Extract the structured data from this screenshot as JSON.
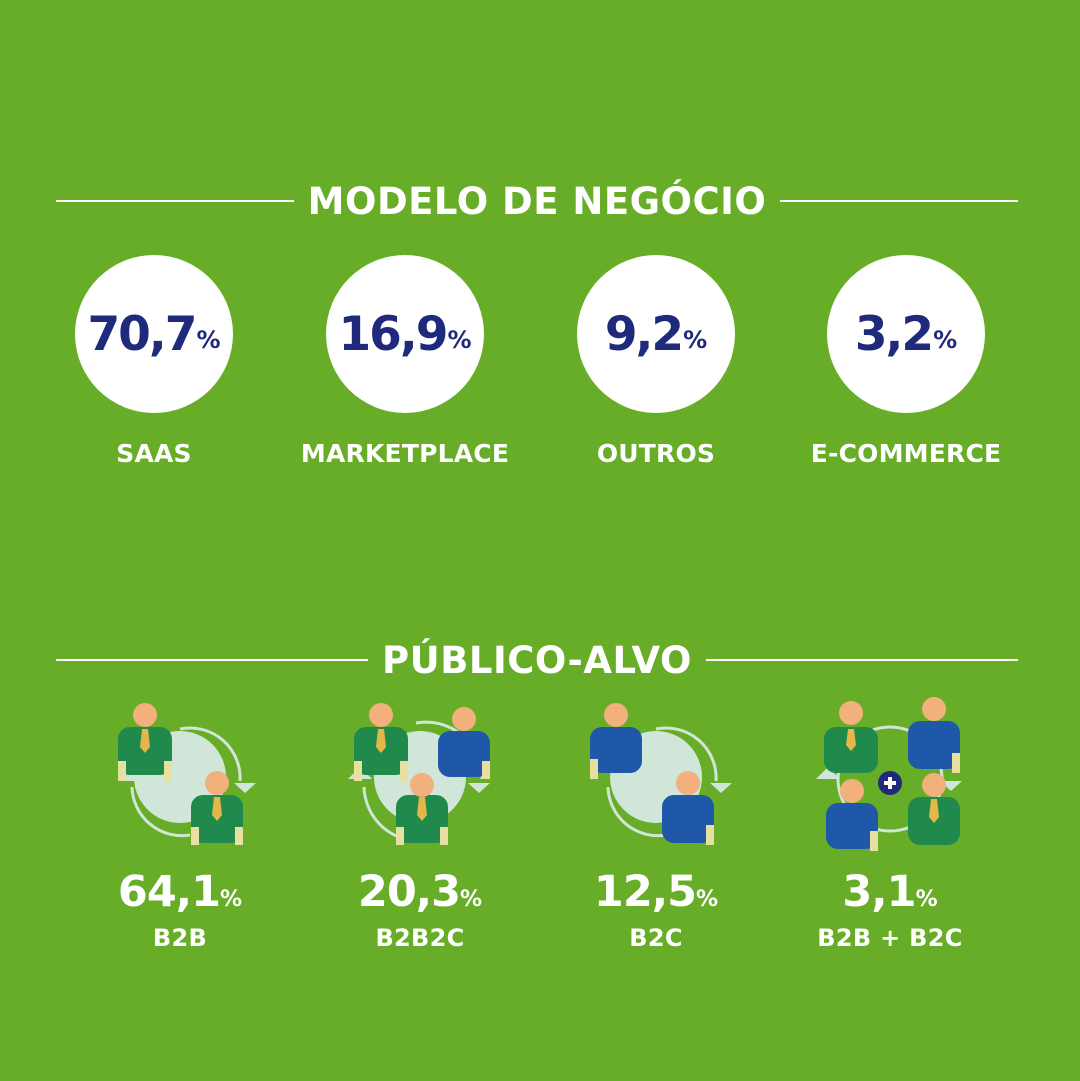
{
  "colors": {
    "background": "#67ad27",
    "number_blue": "#1f2a7c",
    "person_green": "#1f8a4c",
    "person_blue": "#1f58a8",
    "skin": "#f2b07d",
    "tie": "#e5b64a",
    "disc": "#cfe6d8"
  },
  "modelo": {
    "title": "MODELO DE NEGÓCIO",
    "items": [
      {
        "value": "70,7",
        "unit": "%",
        "label": "SAAS"
      },
      {
        "value": "16,9",
        "unit": "%",
        "label": "MARKETPLACE"
      },
      {
        "value": "9,2",
        "unit": "%",
        "label": "OUTROS"
      },
      {
        "value": "3,2",
        "unit": "%",
        "label": "E-COMMERCE"
      }
    ]
  },
  "publico": {
    "title": "PÚBLICO-ALVO",
    "items": [
      {
        "value": "64,1",
        "unit": "%",
        "label": "B2B",
        "icon": "b2b-people-icon"
      },
      {
        "value": "20,3",
        "unit": "%",
        "label": "B2B2C",
        "icon": "b2b2c-people-icon"
      },
      {
        "value": "12,5",
        "unit": "%",
        "label": "B2C",
        "icon": "b2c-people-icon"
      },
      {
        "value": "3,1",
        "unit": "%",
        "label": "B2B + B2C",
        "icon": "b2b-plus-b2c-people-icon"
      }
    ]
  }
}
